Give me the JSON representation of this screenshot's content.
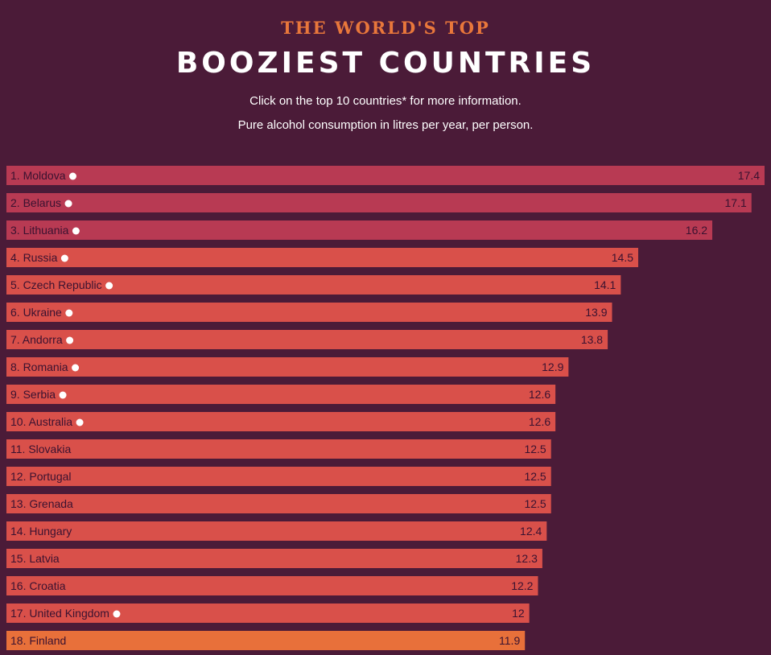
{
  "header": {
    "kicker": "THE WORLD'S TOP",
    "title": "BOOZIEST COUNTRIES",
    "subtitle1": "Click on the top 10 countries* for more information.",
    "subtitle2": "Pure alcohol consumption in litres per year, per person."
  },
  "colors": {
    "background": "#4b1b38",
    "bar_top3": "#b83a53",
    "bar_mid": "#d9504a",
    "bar_highlight": "#e8703a",
    "marker": "#ffffff"
  },
  "chart_data": {
    "type": "bar",
    "orientation": "horizontal",
    "title": "BOOZIEST COUNTRIES",
    "unit": "Pure alcohol consumption in litres per year, per person",
    "xlim": [
      0,
      17.4
    ],
    "bars": [
      {
        "label": "1. Moldova",
        "value": 17.4,
        "marker": true,
        "group": "top3"
      },
      {
        "label": "2. Belarus",
        "value": 17.1,
        "marker": true,
        "group": "top3"
      },
      {
        "label": "3. Lithuania",
        "value": 16.2,
        "marker": true,
        "group": "top3"
      },
      {
        "label": "4. Russia",
        "value": 14.5,
        "marker": true,
        "group": "mid"
      },
      {
        "label": "5. Czech Republic",
        "value": 14.1,
        "marker": true,
        "group": "mid"
      },
      {
        "label": "6. Ukraine",
        "value": 13.9,
        "marker": true,
        "group": "mid"
      },
      {
        "label": "7. Andorra",
        "value": 13.8,
        "marker": true,
        "group": "mid"
      },
      {
        "label": "8. Romania",
        "value": 12.9,
        "marker": true,
        "group": "mid"
      },
      {
        "label": "9. Serbia",
        "value": 12.6,
        "marker": true,
        "group": "mid"
      },
      {
        "label": "10. Australia",
        "value": 12.6,
        "marker": true,
        "group": "mid"
      },
      {
        "label": "11. Slovakia",
        "value": 12.5,
        "marker": false,
        "group": "mid"
      },
      {
        "label": "12. Portugal",
        "value": 12.5,
        "marker": false,
        "group": "mid"
      },
      {
        "label": "13. Grenada",
        "value": 12.5,
        "marker": false,
        "group": "mid"
      },
      {
        "label": "14. Hungary",
        "value": 12.4,
        "marker": false,
        "group": "mid"
      },
      {
        "label": "15. Latvia",
        "value": 12.3,
        "marker": false,
        "group": "mid"
      },
      {
        "label": "16. Croatia",
        "value": 12.2,
        "marker": false,
        "group": "mid"
      },
      {
        "label": "17. United Kingdom",
        "value": 12,
        "marker": true,
        "group": "mid"
      },
      {
        "label": "18. Finland",
        "value": 11.9,
        "marker": false,
        "group": "highlight"
      }
    ]
  }
}
